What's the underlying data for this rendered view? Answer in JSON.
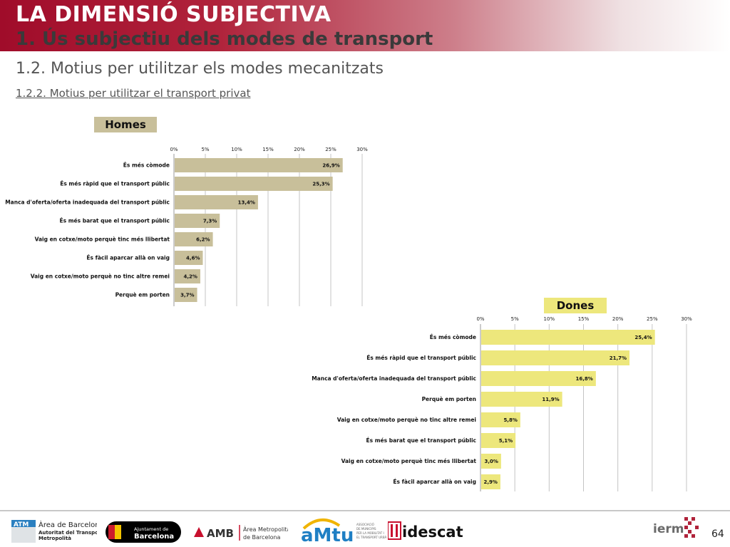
{
  "header": {
    "title": "LA DIMENSIÓ SUBJECTIVA",
    "subtitle": "1. Ús subjectiu dels modes de transport"
  },
  "section": {
    "title": "1.2. Motius per utilitzar els modes mecanitzats",
    "subtitle": "1.2.2. Motius per utilitzar el transport privat"
  },
  "colors": {
    "homes_bar": "#c8bf9a",
    "dones_bar": "#ede77c",
    "header_red": "#a00c2a"
  },
  "chart_data": [
    {
      "type": "bar",
      "orientation": "horizontal",
      "panel_label": "Homes",
      "categories": [
        "És més còmode",
        "És més ràpid que el transport públic",
        "Manca d'oferta/oferta inadequada del transport públic",
        "És més barat que el transport públic",
        "Vaig en cotxe/moto perquè tinc més llibertat",
        "És fàcil aparcar allà on vaig",
        "Vaig en cotxe/moto perquè no tinc altre remei",
        "Perquè em porten"
      ],
      "values": [
        26.9,
        25.3,
        13.4,
        7.3,
        6.2,
        4.6,
        4.2,
        3.7
      ],
      "value_labels": [
        "26,9%",
        "25,3%",
        "13,4%",
        "7,3%",
        "6,2%",
        "4,6%",
        "4,2%",
        "3,7%"
      ],
      "xlim": [
        0,
        30
      ],
      "ticks": [
        "0%",
        "5%",
        "10%",
        "15%",
        "20%",
        "25%",
        "30%"
      ],
      "grid": true
    },
    {
      "type": "bar",
      "orientation": "horizontal",
      "panel_label": "Dones",
      "categories": [
        "És més còmode",
        "És més ràpid que el transport públic",
        "Manca d'oferta/oferta inadequada del transport públic",
        "Perquè em porten",
        "Vaig en cotxe/moto perquè no tinc altre remei",
        "És més barat que el transport públic",
        "Vaig en cotxe/moto perquè tinc més llibertat",
        "És fàcil aparcar allà on vaig"
      ],
      "values": [
        25.4,
        21.7,
        16.8,
        11.9,
        5.8,
        5.1,
        3.0,
        2.9
      ],
      "value_labels": [
        "25,4%",
        "21,7%",
        "16,8%",
        "11,9%",
        "5,8%",
        "5,1%",
        "3,0%",
        "2,9%"
      ],
      "xlim": [
        0,
        30
      ],
      "ticks": [
        "0%",
        "5%",
        "10%",
        "15%",
        "20%",
        "25%",
        "30%"
      ],
      "grid": true
    }
  ],
  "footer": {
    "atm": {
      "badge": "ATM",
      "line1": "Àrea de Barcelona",
      "line2": "Autoritat del Transport",
      "line3": "Metropolità"
    },
    "ajuntament": {
      "line1": "Ajuntament de",
      "line2": "Barcelona"
    },
    "amb": {
      "acronym": "AMB",
      "line1": "Àrea Metropolitana",
      "line2": "de Barcelona"
    },
    "amtu": {
      "name": "aMtu",
      "small1": "ASSOCIACIÓ",
      "small2": "DE MUNICIPIS",
      "small3": "PER LA MOBILITAT I",
      "small4": "EL TRANSPORT URBÀ"
    },
    "idescat": {
      "name": "idescat"
    },
    "ierm": {
      "name": "ierm"
    },
    "page_number": "64"
  }
}
